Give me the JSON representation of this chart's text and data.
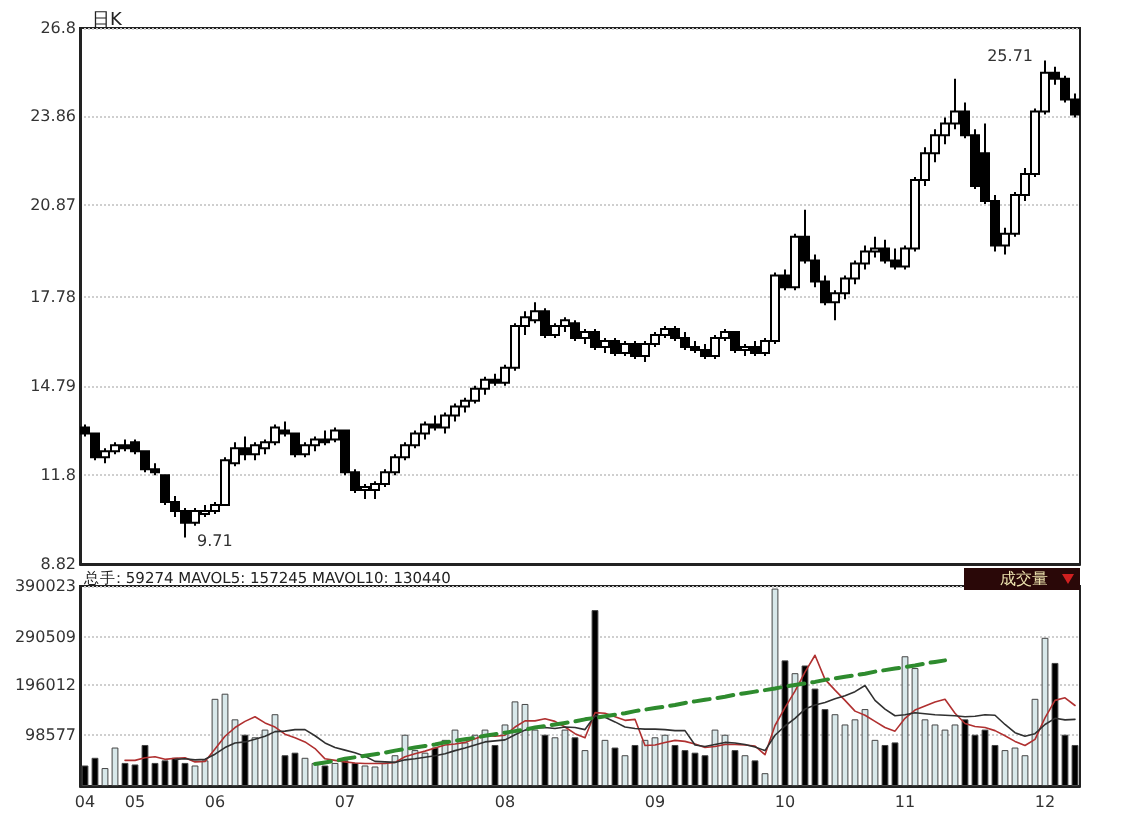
{
  "chart_data": [
    {
      "type": "candlestick",
      "title": "日K",
      "color": "#000000",
      "grid": "y",
      "tick_labels": "y",
      "categories": [
        "04",
        null,
        null,
        null,
        null,
        "05",
        null,
        null,
        null,
        null,
        null,
        null,
        null,
        "06",
        null,
        null,
        null,
        null,
        null,
        null,
        null,
        null,
        null,
        null,
        null,
        null,
        "07",
        null,
        null,
        null,
        null,
        null,
        null,
        null,
        null,
        null,
        null,
        null,
        null,
        null,
        null,
        null,
        "08",
        null,
        null,
        null,
        null,
        null,
        null,
        null,
        null,
        null,
        null,
        null,
        null,
        null,
        null,
        "09",
        null,
        null,
        null,
        null,
        null,
        null,
        null,
        null,
        null,
        null,
        null,
        null,
        "10",
        null,
        null,
        null,
        null,
        null,
        null,
        null,
        null,
        null,
        null,
        null,
        "11",
        null,
        null,
        null,
        null,
        null,
        null,
        null,
        null,
        null,
        null,
        null,
        null,
        null,
        "12",
        null,
        null,
        null
      ],
      "ohlc": [
        [
          13.4,
          13.5,
          13.1,
          13.2
        ],
        [
          13.2,
          13.2,
          12.3,
          12.4
        ],
        [
          12.4,
          12.7,
          12.2,
          12.6
        ],
        [
          12.6,
          12.9,
          12.5,
          12.8
        ],
        [
          12.8,
          13.0,
          12.6,
          12.7
        ],
        [
          12.9,
          13.0,
          12.5,
          12.6
        ],
        [
          12.6,
          12.6,
          11.9,
          12.0
        ],
        [
          12.0,
          12.2,
          11.8,
          11.9
        ],
        [
          11.8,
          11.8,
          10.8,
          10.9
        ],
        [
          10.9,
          11.1,
          10.4,
          10.6
        ],
        [
          10.6,
          10.7,
          9.71,
          10.2
        ],
        [
          10.2,
          10.7,
          10.1,
          10.6
        ],
        [
          10.5,
          10.8,
          10.4,
          10.6
        ],
        [
          10.6,
          10.9,
          10.5,
          10.8
        ],
        [
          10.8,
          12.4,
          10.8,
          12.3
        ],
        [
          12.2,
          12.9,
          12.1,
          12.7
        ],
        [
          12.7,
          13.1,
          12.3,
          12.5
        ],
        [
          12.5,
          12.9,
          12.3,
          12.8
        ],
        [
          12.7,
          13.0,
          12.5,
          12.9
        ],
        [
          12.9,
          13.5,
          12.8,
          13.4
        ],
        [
          13.3,
          13.6,
          13.1,
          13.2
        ],
        [
          13.2,
          13.2,
          12.4,
          12.5
        ],
        [
          12.5,
          12.9,
          12.4,
          12.8
        ],
        [
          12.8,
          13.1,
          12.6,
          13.0
        ],
        [
          13.0,
          13.3,
          12.8,
          12.9
        ],
        [
          13.0,
          13.4,
          12.9,
          13.3
        ],
        [
          13.3,
          13.3,
          11.8,
          11.9
        ],
        [
          11.9,
          12.0,
          11.2,
          11.3
        ],
        [
          11.3,
          11.5,
          11.0,
          11.4
        ],
        [
          11.3,
          11.6,
          11.0,
          11.5
        ],
        [
          11.5,
          12.0,
          11.4,
          11.9
        ],
        [
          11.9,
          12.5,
          11.8,
          12.4
        ],
        [
          12.4,
          12.9,
          12.3,
          12.8
        ],
        [
          12.8,
          13.3,
          12.7,
          13.2
        ],
        [
          13.2,
          13.6,
          13.0,
          13.5
        ],
        [
          13.5,
          13.8,
          13.3,
          13.4
        ],
        [
          13.4,
          13.9,
          13.2,
          13.8
        ],
        [
          13.8,
          14.2,
          13.6,
          14.1
        ],
        [
          14.1,
          14.4,
          13.9,
          14.3
        ],
        [
          14.3,
          14.8,
          14.2,
          14.7
        ],
        [
          14.7,
          15.1,
          14.5,
          15.0
        ],
        [
          15.0,
          15.2,
          14.8,
          14.9
        ],
        [
          14.9,
          15.5,
          14.8,
          15.4
        ],
        [
          15.4,
          16.9,
          15.3,
          16.8
        ],
        [
          16.8,
          17.3,
          16.5,
          17.1
        ],
        [
          17.0,
          17.6,
          16.9,
          17.3
        ],
        [
          17.3,
          17.4,
          16.4,
          16.5
        ],
        [
          16.5,
          16.9,
          16.4,
          16.8
        ],
        [
          16.8,
          17.1,
          16.6,
          17.0
        ],
        [
          16.9,
          17.0,
          16.3,
          16.4
        ],
        [
          16.4,
          16.7,
          16.2,
          16.6
        ],
        [
          16.6,
          16.7,
          16.0,
          16.1
        ],
        [
          16.1,
          16.4,
          15.9,
          16.3
        ],
        [
          16.3,
          16.4,
          15.8,
          15.9
        ],
        [
          15.9,
          16.3,
          15.8,
          16.2
        ],
        [
          16.2,
          16.3,
          15.7,
          15.8
        ],
        [
          15.8,
          16.3,
          15.6,
          16.2
        ],
        [
          16.2,
          16.6,
          16.1,
          16.5
        ],
        [
          16.5,
          16.8,
          16.4,
          16.7
        ],
        [
          16.7,
          16.8,
          16.3,
          16.4
        ],
        [
          16.4,
          16.6,
          16.0,
          16.1
        ],
        [
          16.1,
          16.3,
          15.9,
          16.0
        ],
        [
          16.0,
          16.2,
          15.7,
          15.8
        ],
        [
          15.8,
          16.5,
          15.7,
          16.4
        ],
        [
          16.4,
          16.7,
          16.3,
          16.6
        ],
        [
          16.6,
          16.6,
          15.9,
          16.0
        ],
        [
          16.0,
          16.2,
          15.8,
          16.1
        ],
        [
          16.1,
          16.3,
          15.8,
          15.9
        ],
        [
          15.9,
          16.4,
          15.8,
          16.3
        ],
        [
          16.3,
          18.6,
          16.2,
          18.5
        ],
        [
          18.5,
          18.7,
          18.0,
          18.1
        ],
        [
          18.1,
          19.9,
          18.0,
          19.8
        ],
        [
          19.8,
          20.7,
          18.9,
          19.0
        ],
        [
          19.0,
          19.2,
          18.1,
          18.3
        ],
        [
          18.3,
          18.5,
          17.5,
          17.6
        ],
        [
          17.6,
          18.0,
          17.0,
          17.9
        ],
        [
          17.9,
          18.5,
          17.7,
          18.4
        ],
        [
          18.4,
          19.0,
          18.2,
          18.9
        ],
        [
          18.9,
          19.5,
          18.7,
          19.3
        ],
        [
          19.3,
          19.8,
          19.1,
          19.4
        ],
        [
          19.4,
          19.7,
          18.9,
          19.0
        ],
        [
          19.0,
          19.4,
          18.7,
          18.8
        ],
        [
          18.8,
          19.5,
          18.7,
          19.4
        ],
        [
          19.4,
          21.8,
          19.3,
          21.7
        ],
        [
          21.7,
          22.8,
          21.5,
          22.6
        ],
        [
          22.6,
          23.4,
          22.3,
          23.2
        ],
        [
          23.2,
          23.8,
          22.9,
          23.6
        ],
        [
          23.6,
          25.1,
          23.4,
          24.0
        ],
        [
          24.0,
          24.3,
          23.1,
          23.2
        ],
        [
          23.2,
          23.4,
          21.4,
          21.5
        ],
        [
          22.6,
          23.6,
          20.9,
          21.0
        ],
        [
          21.0,
          21.2,
          19.3,
          19.5
        ],
        [
          19.5,
          20.1,
          19.2,
          19.9
        ],
        [
          19.9,
          21.3,
          19.8,
          21.2
        ],
        [
          21.2,
          22.1,
          21.0,
          21.9
        ],
        [
          21.9,
          24.1,
          21.8,
          24.0
        ],
        [
          24.0,
          25.71,
          23.9,
          25.3
        ],
        [
          25.3,
          25.5,
          24.9,
          25.1
        ],
        [
          25.1,
          25.2,
          24.3,
          24.4
        ],
        [
          24.4,
          24.6,
          23.8,
          23.9
        ]
      ],
      "ylim": [
        8.82,
        26.8
      ],
      "yticks": [
        8.82,
        11.8,
        14.79,
        17.78,
        20.87,
        23.86,
        26.8
      ],
      "annotations": [
        "9.71",
        "25.71"
      ]
    },
    {
      "type": "bar",
      "grid": "y",
      "marker": "none",
      "categories": [
        "04",
        null,
        null,
        null,
        null,
        "05",
        null,
        null,
        null,
        null,
        null,
        null,
        null,
        "06",
        null,
        null,
        null,
        null,
        null,
        null,
        null,
        null,
        null,
        null,
        null,
        null,
        "07",
        null,
        null,
        null,
        null,
        null,
        null,
        null,
        null,
        null,
        null,
        null,
        null,
        null,
        null,
        null,
        "08",
        null,
        null,
        null,
        null,
        null,
        null,
        null,
        null,
        null,
        null,
        null,
        null,
        null,
        null,
        "09",
        null,
        null,
        null,
        null,
        null,
        null,
        null,
        null,
        null,
        null,
        null,
        null,
        "10",
        null,
        null,
        null,
        null,
        null,
        null,
        null,
        null,
        null,
        null,
        null,
        "11",
        null,
        null,
        null,
        null,
        null,
        null,
        null,
        null,
        null,
        null,
        null,
        null,
        null,
        "12",
        null,
        null,
        null
      ],
      "ylim": [
        0,
        390023
      ],
      "yticks": [
        98577,
        196012,
        290509,
        390023
      ],
      "annotations": [
        "总手: 59274 MAVOL5: 157245 MAVOL10: 130440",
        "成交量"
      ],
      "series": [
        {
          "values": [
            40000,
            55000,
            35000,
            75000,
            45000,
            42000,
            80000,
            45000,
            50000,
            55000,
            45000,
            40000,
            50000,
            170000,
            180000,
            130000,
            100000,
            95000,
            110000,
            140000,
            60000,
            65000,
            55000,
            45000,
            40000,
            45000,
            50000,
            45000,
            40000,
            38000,
            45000,
            60000,
            100000,
            70000,
            65000,
            75000,
            90000,
            110000,
            85000,
            100000,
            110000,
            80000,
            120000,
            165000,
            160000,
            110000,
            100000,
            95000,
            110000,
            95000,
            70000,
            343000,
            90000,
            75000,
            60000,
            80000,
            90000,
            95000,
            100000,
            80000,
            70000,
            65000,
            60000,
            110000,
            100000,
            70000,
            60000,
            50000,
            25000,
            385000,
            245000,
            220000,
            235000,
            190000,
            150000,
            140000,
            120000,
            130000,
            150000,
            90000,
            80000,
            85000,
            253000,
            230000,
            130000,
            120000,
            110000,
            120000,
            130000,
            100000,
            110000,
            80000,
            70000,
            75000,
            60000,
            170000,
            289000,
            240000,
            100000,
            80000
          ],
          "colors": [
            "#000000",
            "#000000",
            "#d8e8ea",
            "#d8e8ea",
            "#000000",
            "#000000",
            "#000000",
            "#000000",
            "#000000",
            "#000000",
            "#000000",
            "#d8e8ea",
            "#d8e8ea",
            "#d8e8ea",
            "#d8e8ea",
            "#d8e8ea",
            "#000000",
            "#d8e8ea",
            "#d8e8ea",
            "#d8e8ea",
            "#000000",
            "#000000",
            "#d8e8ea",
            "#d8e8ea",
            "#000000",
            "#d8e8ea",
            "#000000",
            "#000000",
            "#d8e8ea",
            "#d8e8ea",
            "#d8e8ea",
            "#d8e8ea",
            "#d8e8ea",
            "#d8e8ea",
            "#d8e8ea",
            "#000000",
            "#d8e8ea",
            "#d8e8ea",
            "#d8e8ea",
            "#d8e8ea",
            "#d8e8ea",
            "#000000",
            "#d8e8ea",
            "#d8e8ea",
            "#d8e8ea",
            "#d8e8ea",
            "#000000",
            "#d8e8ea",
            "#d8e8ea",
            "#000000",
            "#d8e8ea",
            "#000000",
            "#d8e8ea",
            "#000000",
            "#d8e8ea",
            "#000000",
            "#d8e8ea",
            "#d8e8ea",
            "#d8e8ea",
            "#000000",
            "#000000",
            "#000000",
            "#000000",
            "#d8e8ea",
            "#d8e8ea",
            "#000000",
            "#d8e8ea",
            "#000000",
            "#d8e8ea",
            "#d8e8ea",
            "#000000",
            "#d8e8ea",
            "#000000",
            "#000000",
            "#000000",
            "#d8e8ea",
            "#d8e8ea",
            "#d8e8ea",
            "#d8e8ea",
            "#d8e8ea",
            "#000000",
            "#000000",
            "#d8e8ea",
            "#d8e8ea",
            "#d8e8ea",
            "#d8e8ea",
            "#d8e8ea",
            "#d8e8ea",
            "#000000",
            "#000000",
            "#000000",
            "#000000",
            "#d8e8ea",
            "#d8e8ea",
            "#d8e8ea",
            "#d8e8ea",
            "#d8e8ea",
            "#000000",
            "#000000",
            "#000000"
          ]
        },
        {
          "type": "line",
          "color": "#b03030",
          "values": [
            null,
            null,
            null,
            null,
            50000,
            50000,
            55000,
            57000,
            52000,
            54000,
            55000,
            47000,
            48000,
            72000,
            97000,
            114000,
            126000,
            135000,
            123000,
            115000,
            101000,
            94000,
            86000,
            73000,
            53000,
            50000,
            47000,
            45000,
            44000,
            44000,
            44000,
            46000,
            57000,
            63000,
            68000,
            74000,
            80000,
            82000,
            85000,
            92000,
            99000,
            97000,
            99000,
            115000,
            127000,
            127000,
            131000,
            126000,
            115000,
            102000,
            94000,
            143000,
            142000,
            135000,
            128000,
            130000,
            79000,
            80000,
            85000,
            89000,
            87000,
            82000,
            75000,
            77000,
            81000,
            81000,
            80000,
            78000,
            61000,
            118000,
            153000,
            185000,
            222000,
            255000,
            208000,
            187000,
            167000,
            146000,
            138000,
            126000,
            114000,
            107000,
            132000,
            148000,
            156000,
            164000,
            169000,
            142000,
            122000,
            116000,
            114000,
            108000,
            98000,
            87000,
            79000,
            91000,
            133000,
            167000,
            172000,
            157000
          ]
        },
        {
          "type": "line",
          "color": "#303030",
          "values": [
            null,
            null,
            null,
            null,
            null,
            null,
            null,
            null,
            null,
            52000,
            53000,
            51000,
            52000,
            62000,
            75000,
            84000,
            86000,
            91000,
            97000,
            106000,
            107000,
            110000,
            110000,
            98000,
            84000,
            75000,
            70000,
            65000,
            58000,
            48000,
            47000,
            46000,
            51000,
            53000,
            56000,
            59000,
            63000,
            69000,
            74000,
            80000,
            86000,
            88000,
            90000,
            100000,
            109000,
            113000,
            114000,
            112000,
            115000,
            114000,
            110000,
            137000,
            134000,
            125000,
            115000,
            112000,
            111000,
            111000,
            110000,
            108000,
            108000,
            80000,
            77000,
            81000,
            85000,
            84000,
            81000,
            76000,
            69000,
            99000,
            117000,
            132000,
            150000,
            158000,
            163000,
            170000,
            176000,
            184000,
            196000,
            167000,
            150000,
            137000,
            139000,
            143000,
            141000,
            139000,
            138000,
            137000,
            135000,
            136000,
            139000,
            138000,
            120000,
            104000,
            97000,
            102000,
            120000,
            132000,
            129000,
            130000
          ]
        },
        {
          "type": "line",
          "color": "#2e8b2e",
          "line_style": "dashed",
          "values": [
            null,
            null,
            null,
            null,
            null,
            null,
            null,
            null,
            null,
            null,
            null,
            null,
            null,
            null,
            null,
            null,
            null,
            null,
            null,
            null,
            null,
            null,
            null,
            43000,
            46000,
            49000,
            53000,
            56000,
            59000,
            62000,
            65000,
            69000,
            72000,
            75000,
            78000,
            81000,
            85000,
            88000,
            91000,
            94000,
            98000,
            101000,
            104000,
            107000,
            110000,
            114000,
            117000,
            120000,
            123000,
            126000,
            130000,
            133000,
            136000,
            139000,
            142000,
            146000,
            149000,
            152000,
            155000,
            158000,
            162000,
            165000,
            168000,
            171000,
            174000,
            178000,
            181000,
            184000,
            187000,
            190000,
            194000,
            197000,
            200000,
            203000,
            207000,
            210000,
            213000,
            216000,
            219000,
            223000,
            226000,
            229000,
            232000,
            235000,
            239000,
            242000,
            245000,
            null,
            null,
            null,
            null,
            null,
            null,
            null,
            null,
            null,
            null,
            null,
            null,
            null
          ]
        }
      ]
    }
  ]
}
